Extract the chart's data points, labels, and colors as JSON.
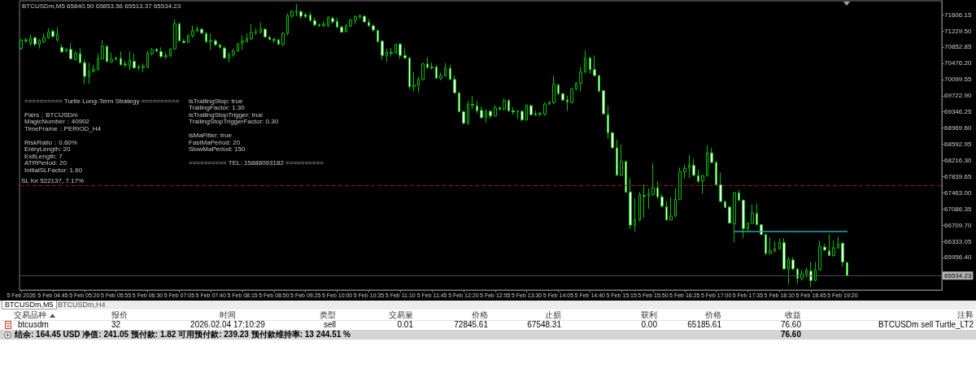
{
  "chart_data": [
    {
      "type": "candlestick",
      "title": "BTCUSDm,M5 65840.50 65853.56 65513.37 65534.23",
      "color": "#00c000",
      "annotations": [
        "========== Turtle Long-Term Strategy ==========",
        "Pairs：BTCUSDm\nMagicNumber：40902\nTimeFrame：PERIOD_H4",
        "RiskRatio：0.60%\nEntryLength: 20\nExitLength: 7\nATRPeriod: 20\nInitialSLFactor: 1.60",
        "isTrailingStop: true\nTrailingFactor: 1.30\nisTrailingStopTrigger: true\nTrailingStopTriggerFactor: 0.30",
        "isMaFilter: true\nFastMaPeriod: 20\nSlowMaPeriod: 150",
        "========== TEL: 15888093182 =========="
      ],
      "x": [
        "2026-02-05T04:10",
        "2026-02-05T04:15",
        "2026-02-05T04:20",
        "2026-02-05T04:25",
        "2026-02-05T04:30",
        "2026-02-05T04:35",
        "2026-02-05T04:40",
        "2026-02-05T04:45",
        "2026-02-05T04:50",
        "2026-02-05T04:55",
        "2026-02-05T05:00",
        "2026-02-05T05:05",
        "2026-02-05T05:10",
        "2026-02-05T05:15",
        "2026-02-05T05:20",
        "2026-02-05T05:25",
        "2026-02-05T05:30",
        "2026-02-05T05:35",
        "2026-02-05T05:40",
        "2026-02-05T05:45",
        "2026-02-05T05:50",
        "2026-02-05T05:55",
        "2026-02-05T06:00",
        "2026-02-05T06:05",
        "2026-02-05T06:10",
        "2026-02-05T06:15",
        "2026-02-05T06:20",
        "2026-02-05T06:25",
        "2026-02-05T06:30",
        "2026-02-05T06:35",
        "2026-02-05T06:40",
        "2026-02-05T06:45",
        "2026-02-05T06:50",
        "2026-02-05T06:55",
        "2026-02-05T07:00",
        "2026-02-05T07:05",
        "2026-02-05T07:10",
        "2026-02-05T07:15",
        "2026-02-05T07:20",
        "2026-02-05T07:25",
        "2026-02-05T07:30",
        "2026-02-05T07:35",
        "2026-02-05T07:40",
        "2026-02-05T07:45",
        "2026-02-05T07:50",
        "2026-02-05T07:55",
        "2026-02-05T08:00",
        "2026-02-05T08:05",
        "2026-02-05T08:10",
        "2026-02-05T08:15",
        "2026-02-05T08:20",
        "2026-02-05T08:25",
        "2026-02-05T08:30",
        "2026-02-05T08:35",
        "2026-02-05T08:40",
        "2026-02-05T08:45",
        "2026-02-05T08:50",
        "2026-02-05T08:55",
        "2026-02-05T09:00",
        "2026-02-05T09:05",
        "2026-02-05T09:10",
        "2026-02-05T09:15",
        "2026-02-05T09:20",
        "2026-02-05T09:25",
        "2026-02-05T09:30",
        "2026-02-05T09:35",
        "2026-02-05T09:40",
        "2026-02-05T09:45",
        "2026-02-05T09:50",
        "2026-02-05T09:55",
        "2026-02-05T10:00",
        "2026-02-05T10:05",
        "2026-02-05T10:10",
        "2026-02-05T10:15",
        "2026-02-05T10:20",
        "2026-02-05T10:25",
        "2026-02-05T10:30",
        "2026-02-05T10:35",
        "2026-02-05T10:40",
        "2026-02-05T10:45",
        "2026-02-05T10:50",
        "2026-02-05T10:55",
        "2026-02-05T11:00",
        "2026-02-05T11:05",
        "2026-02-05T11:10",
        "2026-02-05T11:15",
        "2026-02-05T11:20",
        "2026-02-05T11:25",
        "2026-02-05T11:30",
        "2026-02-05T11:35",
        "2026-02-05T11:40",
        "2026-02-05T11:45",
        "2026-02-05T11:50",
        "2026-02-05T11:55",
        "2026-02-05T12:00",
        "2026-02-05T12:05",
        "2026-02-05T12:10",
        "2026-02-05T12:15",
        "2026-02-05T12:20",
        "2026-02-05T12:25",
        "2026-02-05T12:30",
        "2026-02-05T12:35",
        "2026-02-05T12:40",
        "2026-02-05T12:45",
        "2026-02-05T12:50",
        "2026-02-05T12:55",
        "2026-02-05T13:00",
        "2026-02-05T13:05",
        "2026-02-05T13:10",
        "2026-02-05T13:15",
        "2026-02-05T13:20",
        "2026-02-05T13:25",
        "2026-02-05T13:30",
        "2026-02-05T13:35",
        "2026-02-05T13:40",
        "2026-02-05T13:45",
        "2026-02-05T13:50",
        "2026-02-05T13:55",
        "2026-02-05T14:00",
        "2026-02-05T14:05",
        "2026-02-05T14:10",
        "2026-02-05T14:15",
        "2026-02-05T14:20",
        "2026-02-05T14:25",
        "2026-02-05T14:30",
        "2026-02-05T14:35",
        "2026-02-05T14:40",
        "2026-02-05T14:45",
        "2026-02-05T14:50",
        "2026-02-05T14:55",
        "2026-02-05T15:00",
        "2026-02-05T15:05",
        "2026-02-05T15:10",
        "2026-02-05T15:15",
        "2026-02-05T15:20",
        "2026-02-05T15:25",
        "2026-02-05T15:30",
        "2026-02-05T15:35",
        "2026-02-05T15:40",
        "2026-02-05T15:45",
        "2026-02-05T15:50",
        "2026-02-05T15:55",
        "2026-02-05T16:00",
        "2026-02-05T16:05",
        "2026-02-05T16:10",
        "2026-02-05T16:15",
        "2026-02-05T16:20",
        "2026-02-05T16:25",
        "2026-02-05T16:30",
        "2026-02-05T16:35",
        "2026-02-05T16:40",
        "2026-02-05T16:45",
        "2026-02-05T16:50",
        "2026-02-05T16:55",
        "2026-02-05T17:00",
        "2026-02-05T17:05",
        "2026-02-05T17:10",
        "2026-02-05T17:15",
        "2026-02-05T17:20",
        "2026-02-05T17:25",
        "2026-02-05T17:30",
        "2026-02-05T17:35",
        "2026-02-05T17:40",
        "2026-02-05T17:45",
        "2026-02-05T17:50",
        "2026-02-05T17:55",
        "2026-02-05T18:00",
        "2026-02-05T18:05",
        "2026-02-05T18:10",
        "2026-02-05T18:15",
        "2026-02-05T18:20",
        "2026-02-05T18:25",
        "2026-02-05T18:30",
        "2026-02-05T18:35",
        "2026-02-05T18:40",
        "2026-02-05T18:45",
        "2026-02-05T18:50",
        "2026-02-05T18:55",
        "2026-02-05T19:00",
        "2026-02-05T19:05",
        "2026-02-05T19:10",
        "2026-02-05T19:15",
        "2026-02-05T19:20",
        "2026-02-05T19:25"
      ],
      "ohlc": [
        [
          70820,
          71040,
          70790,
          71010
        ],
        [
          71020,
          71070,
          70950,
          71000
        ],
        [
          70930,
          71150,
          70880,
          71060
        ],
        [
          71070,
          71100,
          70870,
          70920
        ],
        [
          70920,
          71040,
          70820,
          71010
        ],
        [
          70980,
          71170,
          70950,
          71070
        ],
        [
          71070,
          71290,
          71040,
          71210
        ],
        [
          71220,
          71260,
          71070,
          71100
        ],
        [
          71020,
          71320,
          70980,
          71150
        ],
        [
          70850,
          70920,
          70730,
          70740
        ],
        [
          70760,
          70830,
          70740,
          70800
        ],
        [
          70800,
          70950,
          70560,
          70580
        ],
        [
          70570,
          70760,
          70540,
          70710
        ],
        [
          70700,
          70830,
          70480,
          70490
        ],
        [
          70490,
          70560,
          69990,
          70170
        ],
        [
          70170,
          70490,
          70000,
          70290
        ],
        [
          70290,
          70440,
          70260,
          70330
        ],
        [
          70330,
          70700,
          70310,
          70580
        ],
        [
          70580,
          71010,
          70560,
          70870
        ],
        [
          70870,
          70900,
          70490,
          70520
        ],
        [
          70510,
          70730,
          70480,
          70570
        ],
        [
          70600,
          70630,
          70540,
          70580
        ],
        [
          70590,
          70750,
          70430,
          70440
        ],
        [
          70460,
          70540,
          70380,
          70440
        ],
        [
          70410,
          70750,
          70320,
          70540
        ],
        [
          70520,
          70700,
          70350,
          70370
        ],
        [
          70390,
          70440,
          70310,
          70370
        ],
        [
          70380,
          70470,
          70270,
          70410
        ],
        [
          70380,
          70760,
          70370,
          70710
        ],
        [
          70700,
          70830,
          70660,
          70790
        ],
        [
          70800,
          70830,
          70730,
          70760
        ],
        [
          70750,
          70850,
          70600,
          70630
        ],
        [
          70630,
          70730,
          70580,
          70660
        ],
        [
          70650,
          70820,
          70620,
          70810
        ],
        [
          70810,
          71500,
          70790,
          71400
        ],
        [
          71390,
          71420,
          70980,
          71000
        ],
        [
          70990,
          71040,
          70950,
          70960
        ],
        [
          70960,
          71150,
          70950,
          71120
        ],
        [
          71120,
          71350,
          71070,
          71230
        ],
        [
          71230,
          71340,
          71200,
          71280
        ],
        [
          71270,
          71290,
          71150,
          71180
        ],
        [
          71170,
          71200,
          70950,
          70980
        ],
        [
          70980,
          71170,
          70790,
          71010
        ],
        [
          71000,
          71040,
          70880,
          70910
        ],
        [
          70900,
          70930,
          70810,
          70850
        ],
        [
          70830,
          70870,
          70580,
          70600
        ],
        [
          70600,
          70730,
          70490,
          70680
        ],
        [
          70680,
          70820,
          70630,
          70760
        ],
        [
          70760,
          70950,
          70740,
          70930
        ],
        [
          70950,
          71130,
          70790,
          71000
        ],
        [
          70980,
          71170,
          70960,
          71050
        ],
        [
          71050,
          71390,
          71020,
          71190
        ],
        [
          71190,
          71290,
          71130,
          71210
        ],
        [
          71200,
          71420,
          71170,
          71270
        ],
        [
          71270,
          71290,
          71070,
          71090
        ],
        [
          71080,
          71120,
          71010,
          71030
        ],
        [
          71030,
          71070,
          70950,
          71010
        ],
        [
          71020,
          71050,
          70900,
          70920
        ],
        [
          70920,
          71210,
          70880,
          71170
        ],
        [
          71170,
          71640,
          71130,
          71590
        ],
        [
          71570,
          71710,
          71540,
          71680
        ],
        [
          71670,
          71850,
          71570,
          71690
        ],
        [
          71680,
          71710,
          71510,
          71570
        ],
        [
          71610,
          71650,
          71520,
          71560
        ],
        [
          71600,
          71670,
          71450,
          71470
        ],
        [
          71470,
          71540,
          71340,
          71370
        ],
        [
          71370,
          71400,
          71320,
          71350
        ],
        [
          71350,
          71450,
          71320,
          71390
        ],
        [
          71350,
          71570,
          71320,
          71540
        ],
        [
          71520,
          71560,
          71400,
          71440
        ],
        [
          71450,
          71540,
          71290,
          71320
        ],
        [
          71320,
          71350,
          71190,
          71200
        ],
        [
          71210,
          71390,
          71200,
          71350
        ],
        [
          71350,
          71510,
          71320,
          71480
        ],
        [
          71480,
          71590,
          71390,
          71560
        ],
        [
          71560,
          71610,
          71510,
          71590
        ],
        [
          71570,
          71590,
          71420,
          71440
        ],
        [
          71430,
          71510,
          71320,
          71350
        ],
        [
          71350,
          71390,
          71210,
          71250
        ],
        [
          71240,
          71260,
          70960,
          70980
        ],
        [
          70990,
          71010,
          70560,
          70660
        ],
        [
          70660,
          70820,
          70510,
          70730
        ],
        [
          70730,
          70830,
          70630,
          70710
        ],
        [
          70710,
          70930,
          70700,
          70920
        ],
        [
          70920,
          70950,
          70580,
          70660
        ],
        [
          70660,
          70820,
          70580,
          70600
        ],
        [
          70600,
          70620,
          69880,
          69930
        ],
        [
          69930,
          70260,
          69830,
          69970
        ],
        [
          69960,
          70160,
          69800,
          70100
        ],
        [
          70100,
          70490,
          70070,
          70460
        ],
        [
          70460,
          70620,
          70350,
          70380
        ],
        [
          70390,
          70490,
          70330,
          70370
        ],
        [
          70390,
          70440,
          70120,
          70130
        ],
        [
          70130,
          70260,
          70080,
          70190
        ],
        [
          70190,
          70480,
          70160,
          70370
        ],
        [
          70360,
          70440,
          70080,
          70100
        ],
        [
          70100,
          70190,
          69770,
          69790
        ],
        [
          69790,
          69800,
          69330,
          69350
        ],
        [
          69350,
          69370,
          69060,
          69080
        ],
        [
          69080,
          69600,
          69050,
          69520
        ],
        [
          69520,
          69720,
          69410,
          69500
        ],
        [
          69480,
          69600,
          69310,
          69370
        ],
        [
          69380,
          69470,
          69190,
          69210
        ],
        [
          69220,
          69410,
          69090,
          69350
        ],
        [
          69360,
          69380,
          69190,
          69250
        ],
        [
          69250,
          69500,
          69240,
          69440
        ],
        [
          69440,
          69470,
          69380,
          69410
        ],
        [
          69410,
          69660,
          69380,
          69600
        ],
        [
          69610,
          69630,
          69350,
          69370
        ],
        [
          69370,
          69450,
          69280,
          69340
        ],
        [
          69360,
          69390,
          69190,
          69350
        ],
        [
          69360,
          69380,
          69130,
          69160
        ],
        [
          69160,
          69520,
          69140,
          69500
        ],
        [
          69490,
          69520,
          69260,
          69280
        ],
        [
          69300,
          69370,
          69250,
          69280
        ],
        [
          69290,
          69340,
          69240,
          69310
        ],
        [
          69290,
          69560,
          69260,
          69530
        ],
        [
          69530,
          69600,
          69500,
          69560
        ],
        [
          69560,
          70190,
          69530,
          69990
        ],
        [
          69970,
          70000,
          69740,
          69770
        ],
        [
          69770,
          69790,
          69600,
          69620
        ],
        [
          69620,
          69720,
          69370,
          69580
        ],
        [
          69560,
          69890,
          69550,
          69880
        ],
        [
          69880,
          70040,
          69850,
          70010
        ],
        [
          70010,
          70390,
          69820,
          70270
        ],
        [
          70270,
          70770,
          70260,
          70600
        ],
        [
          70600,
          70620,
          70230,
          70330
        ],
        [
          70330,
          70660,
          70180,
          70190
        ],
        [
          70190,
          70200,
          69790,
          69830
        ],
        [
          69840,
          69850,
          69280,
          69300
        ],
        [
          69280,
          69490,
          68720,
          68860
        ],
        [
          68860,
          68880,
          68490,
          68510
        ],
        [
          68510,
          68700,
          67860,
          67870
        ],
        [
          67870,
          68590,
          67860,
          68190
        ],
        [
          68190,
          68200,
          67460,
          67480
        ],
        [
          67480,
          67800,
          66620,
          66710
        ],
        [
          66710,
          67340,
          66550,
          66830
        ],
        [
          66830,
          67480,
          66800,
          67420
        ],
        [
          67400,
          67650,
          66880,
          67380
        ],
        [
          67400,
          67560,
          67090,
          67430
        ],
        [
          67420,
          68150,
          67400,
          67580
        ],
        [
          67580,
          67730,
          67320,
          67370
        ],
        [
          67370,
          67430,
          67120,
          67150
        ],
        [
          67140,
          67270,
          66820,
          66830
        ],
        [
          66830,
          67360,
          66820,
          66920
        ],
        [
          66920,
          67570,
          66900,
          67310
        ],
        [
          67310,
          68050,
          67290,
          67960
        ],
        [
          67950,
          68120,
          67800,
          68030
        ],
        [
          68050,
          68340,
          67810,
          68110
        ],
        [
          68100,
          68250,
          67840,
          67870
        ],
        [
          67860,
          68000,
          67690,
          67730
        ],
        [
          67740,
          67880,
          67440,
          67860
        ],
        [
          67860,
          68560,
          67840,
          68390
        ],
        [
          68390,
          68510,
          68150,
          68170
        ],
        [
          68170,
          68200,
          67630,
          67650
        ],
        [
          67650,
          67930,
          67240,
          67260
        ],
        [
          67260,
          67270,
          67100,
          67120
        ],
        [
          67130,
          67150,
          66740,
          66760
        ],
        [
          66740,
          67480,
          66310,
          67460
        ],
        [
          67460,
          67530,
          67270,
          67290
        ],
        [
          67290,
          67310,
          66400,
          66630
        ],
        [
          66630,
          66770,
          66540,
          66760
        ],
        [
          66760,
          67190,
          66740,
          66990
        ],
        [
          66980,
          67210,
          66700,
          66720
        ],
        [
          66720,
          66730,
          66480,
          66490
        ],
        [
          66490,
          66500,
          66020,
          66050
        ],
        [
          66050,
          66430,
          66040,
          66110
        ],
        [
          66110,
          66330,
          66080,
          66160
        ],
        [
          66160,
          66400,
          66140,
          66310
        ],
        [
          66300,
          66410,
          65670,
          65690
        ],
        [
          65690,
          65960,
          65330,
          65910
        ],
        [
          65900,
          65960,
          65660,
          65690
        ],
        [
          65690,
          65710,
          65350,
          65470
        ],
        [
          65470,
          65670,
          65420,
          65580
        ],
        [
          65570,
          65710,
          65490,
          65660
        ],
        [
          65640,
          65860,
          65270,
          65420
        ],
        [
          65420,
          65850,
          65410,
          65670
        ],
        [
          65670,
          66350,
          65660,
          66210
        ],
        [
          66200,
          66270,
          66100,
          66130
        ],
        [
          66110,
          66500,
          65990,
          66000
        ],
        [
          66000,
          66350,
          65980,
          66180
        ],
        [
          66180,
          66440,
          66160,
          66270
        ],
        [
          66290,
          66300,
          65740,
          65850
        ],
        [
          65840.5,
          65853.56,
          65513.37,
          65534.23
        ]
      ],
      "series": [
        {
          "type": "line",
          "color": "#1ea8b8",
          "x": [
            "2026-02-05T17:20",
            "2026-02-05T19:25"
          ],
          "values": [
            66560,
            66560
          ]
        }
      ],
      "xlim": [
        "2026-02-05T04:08",
        "2026-02-05T21:10"
      ],
      "xticks": [
        {
          "value": "2026-02-05T04:10",
          "label": "5 Feb 2026"
        },
        {
          "value": "2026-02-05T04:45",
          "label": "5 Feb 04:45"
        },
        {
          "value": "2026-02-05T05:20",
          "label": "5 Feb 05:20"
        },
        {
          "value": "2026-02-05T05:55",
          "label": "5 Feb 05:55"
        },
        {
          "value": "2026-02-05T06:30",
          "label": "5 Feb 06:30"
        },
        {
          "value": "2026-02-05T07:05",
          "label": "5 Feb 07:05"
        },
        {
          "value": "2026-02-05T07:40",
          "label": "5 Feb 07:40"
        },
        {
          "value": "2026-02-05T08:15",
          "label": "5 Feb 08:15"
        },
        {
          "value": "2026-02-05T08:50",
          "label": "5 Feb 08:50"
        },
        {
          "value": "2026-02-05T09:25",
          "label": "5 Feb 09:25"
        },
        {
          "value": "2026-02-05T10:00",
          "label": "5 Feb 10:00"
        },
        {
          "value": "2026-02-05T10:35",
          "label": "5 Feb 10:35"
        },
        {
          "value": "2026-02-05T11:10",
          "label": "5 Feb 11:10"
        },
        {
          "value": "2026-02-05T11:45",
          "label": "5 Feb 11:45"
        },
        {
          "value": "2026-02-05T12:20",
          "label": "5 Feb 12:20"
        },
        {
          "value": "2026-02-05T12:55",
          "label": "5 Feb 12:55"
        },
        {
          "value": "2026-02-05T13:30",
          "label": "5 Feb 13:30"
        },
        {
          "value": "2026-02-05T14:05",
          "label": "5 Feb 14:05"
        },
        {
          "value": "2026-02-05T14:40",
          "label": "5 Feb 14:40"
        },
        {
          "value": "2026-02-05T15:15",
          "label": "5 Feb 15:15"
        },
        {
          "value": "2026-02-05T15:50",
          "label": "5 Feb 15:50"
        },
        {
          "value": "2026-02-05T16:25",
          "label": "5 Feb 16:25"
        },
        {
          "value": "2026-02-05T17:00",
          "label": "5 Feb 17:00"
        },
        {
          "value": "2026-02-05T17:35",
          "label": "5 Feb 17:35"
        },
        {
          "value": "2026-02-05T18:10",
          "label": "5 Feb 18:10"
        },
        {
          "value": "2026-02-05T18:45",
          "label": "5 Feb 18:45"
        },
        {
          "value": "2026-02-05T19:20",
          "label": "5 Feb 19:20"
        }
      ],
      "ylim": [
        65200,
        71930
      ],
      "yticks": [
        {
          "value": 71606.15,
          "label": "71606.15"
        },
        {
          "value": 71229.5,
          "label": "71229.50"
        },
        {
          "value": 70852.85,
          "label": "70852.85"
        },
        {
          "value": 70476.2,
          "label": "70476.20"
        },
        {
          "value": 70099.55,
          "label": "70099.55"
        },
        {
          "value": 69722.9,
          "label": "69722.90"
        },
        {
          "value": 69346.25,
          "label": "69346.25"
        },
        {
          "value": 68969.6,
          "label": "68969.60"
        },
        {
          "value": 68592.95,
          "label": "68592.95"
        },
        {
          "value": 68216.3,
          "label": "68216.30"
        },
        {
          "value": 67839.65,
          "label": "67839.65"
        },
        {
          "value": 67463,
          "label": "67463.00"
        },
        {
          "value": 67086.35,
          "label": "67086.35"
        },
        {
          "value": 66709.7,
          "label": "66709.70"
        },
        {
          "value": 66333.05,
          "label": "66333.05"
        },
        {
          "value": 65956.4,
          "label": "65956.40"
        }
      ],
      "ref_lines": [
        {
          "axis": "y",
          "value": 67632,
          "label": "SL for 522137, 7.17%",
          "color": "#a01414",
          "line_style": "dashed"
        },
        {
          "axis": "y",
          "value": 65534.23,
          "label": "65534.23",
          "color": "#4a4a4a",
          "line_style": "solid"
        }
      ]
    },
    {
      "type": "other",
      "annotations": [
        "BTCUSDm,M5",
        "BTCUSDm,H4",
        "交易品种",
        "报价",
        "时间",
        "类型",
        "交易量",
        "价格",
        "止损",
        "获利",
        "价格",
        "收益",
        "注释",
        "btcusdm",
        "32",
        "2026.02.04 17:10:29",
        "sell",
        "0.01",
        "72845.61",
        "67548.31",
        "0.00",
        "65185.61",
        "76.60",
        "BTCUSDm sell Turtle_LT2",
        "结余: 164.45 USD 净值: 241.05 预付款: 1.82 可用预付款: 239.23 预付款维持率: 13 244.51 %",
        "76.60"
      ]
    }
  ]
}
